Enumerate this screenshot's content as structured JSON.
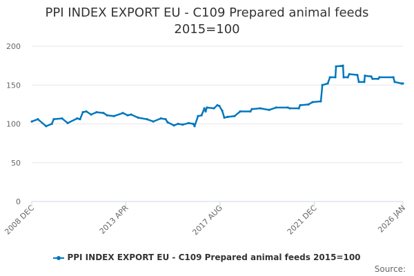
{
  "chart_data": {
    "type": "line",
    "title": "PPI INDEX EXPORT EU - C109 Prepared animal feeds 2015=100",
    "title_lines": [
      "PPI INDEX EXPORT EU - C109 Prepared animal feeds",
      "2015=100"
    ],
    "xlabel": "",
    "ylabel": "",
    "xlim": [
      2008.917,
      2026.0
    ],
    "ylim": [
      0,
      200
    ],
    "yticks": [
      0,
      50,
      100,
      150,
      200
    ],
    "xticks": [
      {
        "value": 2008.917,
        "label": "2008 DEC"
      },
      {
        "value": 2013.25,
        "label": "2013 APR"
      },
      {
        "value": 2017.58,
        "label": "2017 AUG"
      },
      {
        "value": 2021.92,
        "label": "2021 DEC"
      },
      {
        "value": 2026.0,
        "label": "2026 JAN"
      }
    ],
    "grid": true,
    "legend_position": "bottom",
    "series": [
      {
        "name": "PPI INDEX EXPORT EU - C109 Prepared animal feeds 2015=100",
        "color": "#0077be",
        "x": [
          2008.92,
          2009.2,
          2009.58,
          2009.84,
          2009.93,
          2010.31,
          2010.57,
          2011.01,
          2011.14,
          2011.27,
          2011.43,
          2011.65,
          2011.9,
          2012.22,
          2012.38,
          2012.7,
          2013.11,
          2013.33,
          2013.49,
          2013.81,
          2014.22,
          2014.51,
          2014.86,
          2015.08,
          2015.17,
          2015.46,
          2015.65,
          2015.87,
          2016.13,
          2016.35,
          2016.41,
          2016.57,
          2016.73,
          2016.86,
          2016.92,
          2016.98,
          2017.3,
          2017.46,
          2017.55,
          2017.68,
          2017.78,
          2017.94,
          2018.25,
          2018.51,
          2018.98,
          2019.05,
          2019.43,
          2019.84,
          2020.16,
          2020.7,
          2020.79,
          2021.21,
          2021.27,
          2021.65,
          2021.84,
          2022.22,
          2022.29,
          2022.54,
          2022.64,
          2022.89,
          2022.92,
          2023.24,
          2023.27,
          2023.46,
          2023.53,
          2023.9,
          2023.97,
          2024.22,
          2024.25,
          2024.54,
          2024.6,
          2024.86,
          2024.92,
          2025.56,
          2025.62,
          2025.94,
          2026.0
        ],
        "y": [
          103,
          106,
          97,
          100,
          106,
          107,
          101,
          107,
          106,
          115,
          116,
          112,
          115,
          114,
          111,
          110,
          114,
          111,
          112,
          108,
          106,
          103,
          107,
          106,
          102,
          98,
          100,
          99,
          101,
          100,
          97,
          110,
          111,
          120,
          116,
          121,
          120,
          124,
          123,
          117,
          108,
          109,
          110,
          116,
          116,
          119,
          120,
          118,
          121,
          121,
          120,
          120,
          124,
          125,
          128,
          129,
          150,
          152,
          160,
          160,
          174,
          175,
          160,
          160,
          164,
          163,
          154,
          154,
          162,
          161,
          158,
          158,
          160,
          160,
          154,
          152,
          152
        ]
      }
    ]
  },
  "legend_label": "PPI INDEX EXPORT EU - C109 Prepared animal feeds 2015=100",
  "source_label": "Source:"
}
